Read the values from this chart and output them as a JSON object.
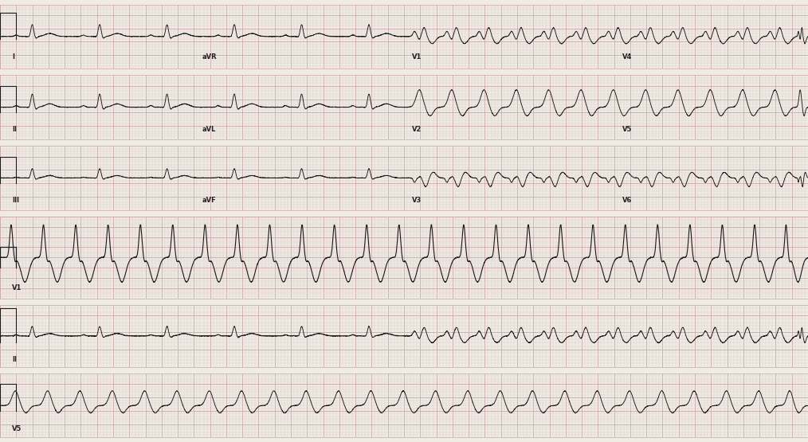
{
  "background_color": "#f0ece4",
  "grid_major_color": "#c8a8a8",
  "grid_minor_color": "#ddc8c8",
  "ecg_color": "#1a1a1a",
  "border_color": "#999999",
  "fig_width": 10.14,
  "fig_height": 5.55,
  "dpi": 100,
  "label_fontsize": 6.5,
  "row_labels": [
    "I",
    "II",
    "III",
    "V1",
    "II",
    "V5"
  ],
  "row_labels_extra": [
    "aVR",
    "V1",
    "V4",
    "aVL",
    "V2",
    "V5",
    "aVF",
    "V3",
    "V6"
  ]
}
